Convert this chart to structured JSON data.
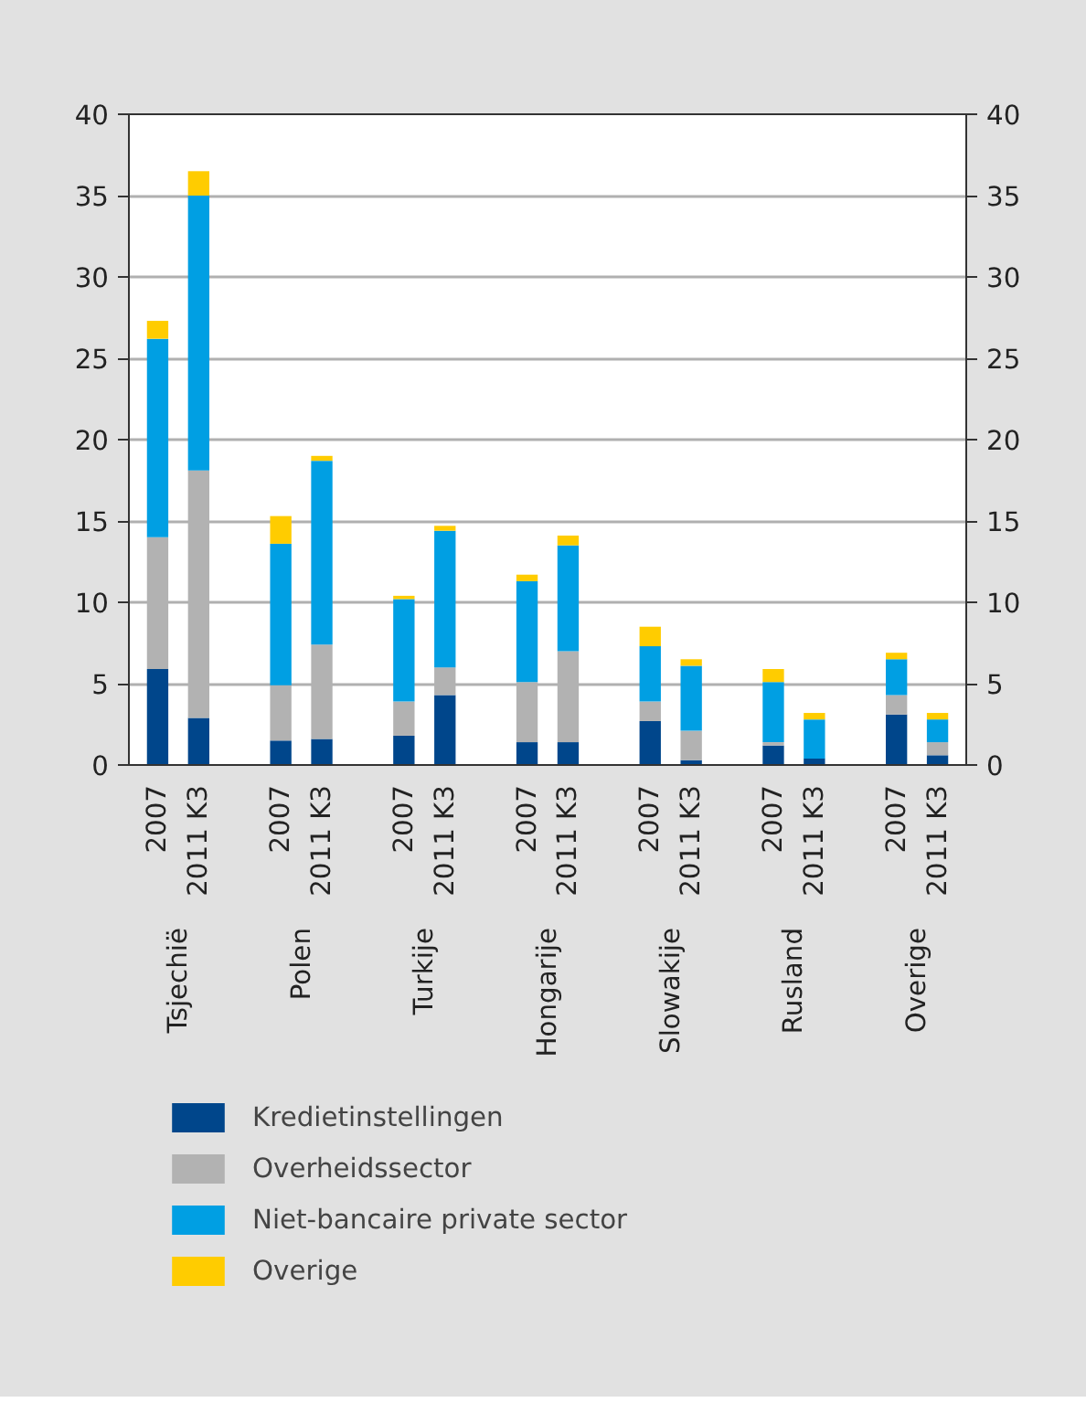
{
  "chart_data": {
    "type": "bar",
    "stacked": true,
    "categories": [
      "2007",
      "2011 K3",
      "2007",
      "2011 K3",
      "2007",
      "2011 K3",
      "2007",
      "2011 K3",
      "2007",
      "2011 K3",
      "2007",
      "2011 K3",
      "2007",
      "2011 K3"
    ],
    "annotations": [
      "Tsjechië",
      "Polen",
      "Turkije",
      "Hongarije",
      "Slowakije",
      "Rusland",
      "Overige"
    ],
    "series": [
      {
        "name": "Kredietinstellingen",
        "color": "#00468b",
        "values": [
          5.9,
          2.9,
          1.5,
          1.6,
          1.8,
          4.3,
          1.4,
          1.4,
          2.7,
          0.3,
          1.2,
          0.4,
          3.1,
          0.6
        ]
      },
      {
        "name": "Overheidssector",
        "color": "#b2b2b2",
        "values": [
          8.1,
          15.2,
          3.4,
          5.8,
          2.1,
          1.7,
          3.7,
          5.6,
          1.2,
          1.8,
          0.2,
          0,
          1.2,
          0.8
        ]
      },
      {
        "name": "Niet-bancaire private sector",
        "color": "#009fe3",
        "values": [
          12.2,
          16.9,
          8.7,
          11.3,
          6.3,
          8.4,
          6.2,
          6.5,
          3.4,
          4.0,
          3.7,
          2.4,
          2.2,
          1.4
        ]
      },
      {
        "name": "Overige",
        "color": "#ffcc00",
        "values": [
          1.1,
          1.5,
          1.7,
          0.3,
          0.2,
          0.3,
          0.4,
          0.6,
          1.2,
          0.4,
          0.8,
          0.4,
          0.4,
          0.4
        ]
      }
    ],
    "ylim": [
      0,
      40
    ],
    "yticks": [
      0,
      5,
      10,
      15,
      20,
      25,
      30,
      35,
      40
    ],
    "y2lim": [
      0,
      40
    ],
    "y2ticks": [
      0,
      5,
      10,
      15,
      20,
      25,
      30,
      35,
      40
    ],
    "grid": "y",
    "legend": "bottom"
  }
}
